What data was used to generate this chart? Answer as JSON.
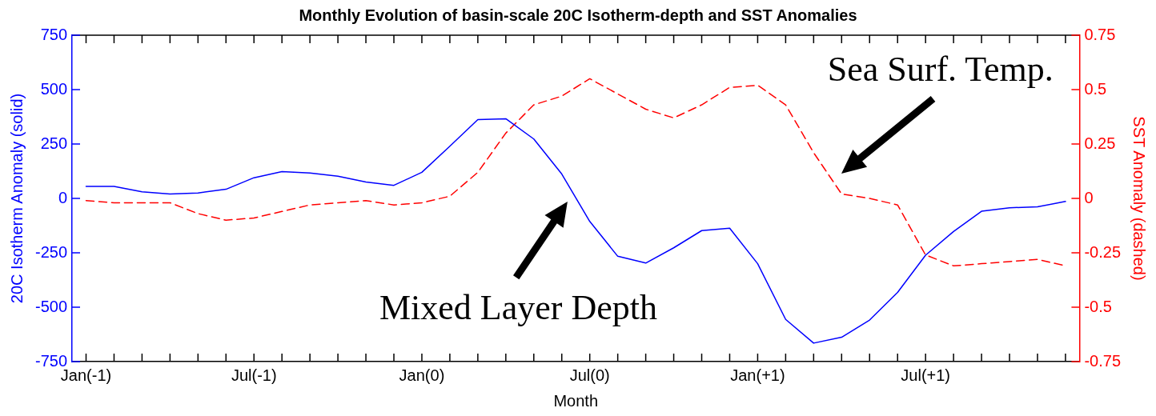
{
  "chart_data": {
    "type": "line",
    "title": "Monthly Evolution of basin-scale 20C Isotherm-depth and SST Anomalies",
    "xlabel": "Month",
    "ylabel": "20C Isotherm Anomaly (solid)",
    "y2label": "SST Anomaly (dashed)",
    "categories": [
      "Jan(-1)",
      null,
      null,
      null,
      null,
      null,
      "Jul(-1)",
      null,
      null,
      null,
      null,
      null,
      "Jan(0)",
      null,
      null,
      null,
      null,
      null,
      "Jul(0)",
      null,
      null,
      null,
      null,
      null,
      "Jan(+1)",
      null,
      null,
      null,
      null,
      null,
      "Jul(+1)",
      null,
      null,
      null,
      null,
      null
    ],
    "series": [
      {
        "color": "#0000ff",
        "line_style": "solid",
        "values": [
          55,
          55,
          30,
          20,
          25,
          42,
          95,
          123,
          117,
          102,
          75,
          60,
          120,
          240,
          362,
          366,
          273,
          112,
          -106,
          -266,
          -297,
          -227,
          -148,
          -137,
          -300,
          -556,
          -665,
          -638,
          -559,
          -432,
          -261,
          -152,
          -59,
          -43,
          -39,
          -14
        ]
      },
      {
        "color": "#ff0000",
        "axis": "y2",
        "line_style": "dashed",
        "values": [
          -0.01,
          -0.02,
          -0.02,
          -0.02,
          -0.07,
          -0.1,
          -0.09,
          -0.06,
          -0.03,
          -0.02,
          -0.01,
          -0.03,
          -0.02,
          0.01,
          0.12,
          0.3,
          0.43,
          0.47,
          0.55,
          0.48,
          0.41,
          0.37,
          0.43,
          0.51,
          0.52,
          0.43,
          0.21,
          0.02,
          0,
          -0.03,
          -0.26,
          -0.31,
          -0.3,
          -0.29,
          -0.28,
          -0.31
        ]
      }
    ],
    "ylim": [
      -750,
      750
    ],
    "yticks": [
      -750,
      -500,
      -250,
      0,
      250,
      500,
      750
    ],
    "y2lim": [
      -0.75,
      0.75
    ],
    "y2ticks": [
      -0.75,
      -0.5,
      -0.25,
      0,
      0.25,
      0.5,
      0.75
    ],
    "annotations": [
      "Mixed Layer Depth",
      "Sea Surf. Temp."
    ],
    "grid": false,
    "legend": false
  }
}
